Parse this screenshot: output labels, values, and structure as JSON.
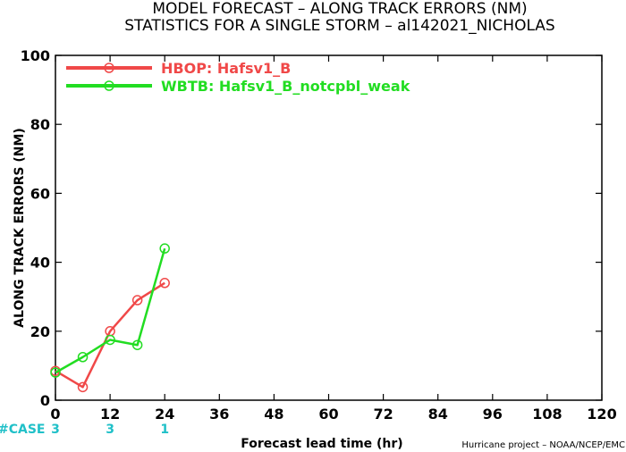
{
  "chart_data": {
    "type": "line",
    "title": "MODEL FORECAST – ALONG TRACK ERRORS (NM)",
    "subtitle": "STATISTICS FOR A SINGLE STORM – al142021_NICHOLAS",
    "xlabel": "Forecast lead time (hr)",
    "ylabel": "ALONG TRACK ERRORS (NM)",
    "xlim": [
      0,
      120
    ],
    "ylim": [
      0,
      100
    ],
    "x_ticks": [
      0,
      12,
      24,
      36,
      48,
      60,
      72,
      84,
      96,
      108,
      120
    ],
    "y_ticks": [
      0,
      20,
      40,
      60,
      80,
      100
    ],
    "grid": false,
    "legend_position": "top-left",
    "series": [
      {
        "name": "HBOP: Hafsv1_B",
        "color": "#f04848",
        "x": [
          0,
          6,
          12,
          18,
          24
        ],
        "y": [
          8.5,
          3.8,
          20,
          29,
          34
        ]
      },
      {
        "name": "WBTB: Hafsv1_B_notcpbl_weak",
        "color": "#22dd22",
        "x": [
          0,
          6,
          12,
          18,
          24
        ],
        "y": [
          8,
          12.5,
          17.5,
          16,
          44
        ]
      }
    ],
    "case_label": "#CASE",
    "case_counts": [
      {
        "x": 0,
        "count": "3"
      },
      {
        "x": 12,
        "count": "3"
      },
      {
        "x": 24,
        "count": "1"
      }
    ],
    "credit": "Hurricane project – NOAA/NCEP/EMC"
  }
}
